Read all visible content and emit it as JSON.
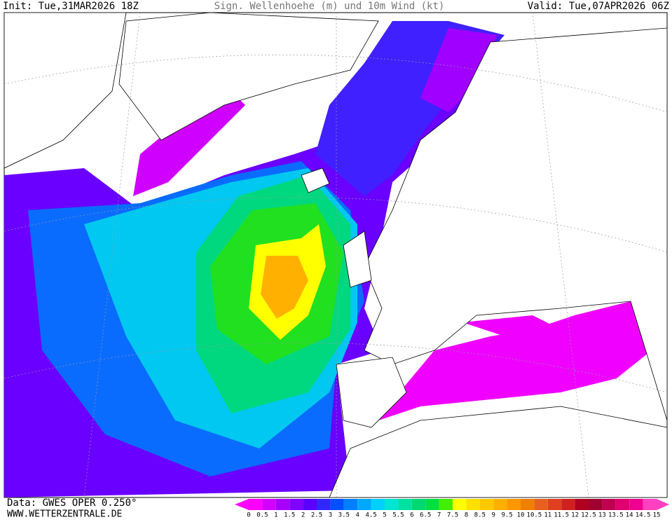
{
  "header": {
    "init": "Init: Tue,31MAR2026 18Z",
    "title": "Sign. Wellenhoehe (m) und 10m Wind (kt)",
    "valid": "Valid: Tue,07APR2026 06Z"
  },
  "footer": {
    "source": "Data: GWES OPER 0.250°",
    "website": "WWW.WETTERZENTRALE.DE"
  },
  "legend": {
    "ticks": [
      0,
      0.5,
      1,
      1.5,
      2,
      2.5,
      3,
      3.5,
      4,
      4.5,
      5,
      5.5,
      6,
      6.5,
      7,
      7.5,
      8,
      8.5,
      9,
      9.5,
      10,
      10.5,
      11,
      11.5,
      12,
      12.5,
      13,
      13.5,
      14,
      14.5,
      15
    ],
    "colors": [
      "#ff00ff",
      "#d400ff",
      "#a800ff",
      "#8000ff",
      "#5a00ff",
      "#3228ff",
      "#0050ff",
      "#0080ff",
      "#00a8ff",
      "#00d0ff",
      "#00e6d2",
      "#00e0a0",
      "#00d872",
      "#00e040",
      "#40f000",
      "#ffff00",
      "#ffe000",
      "#ffc800",
      "#ffb000",
      "#ff9800",
      "#f08000",
      "#e86020",
      "#e04020",
      "#d02020",
      "#b00020",
      "#a00030",
      "#c00050",
      "#e00070",
      "#f00090",
      "#ff40c0"
    ]
  }
}
